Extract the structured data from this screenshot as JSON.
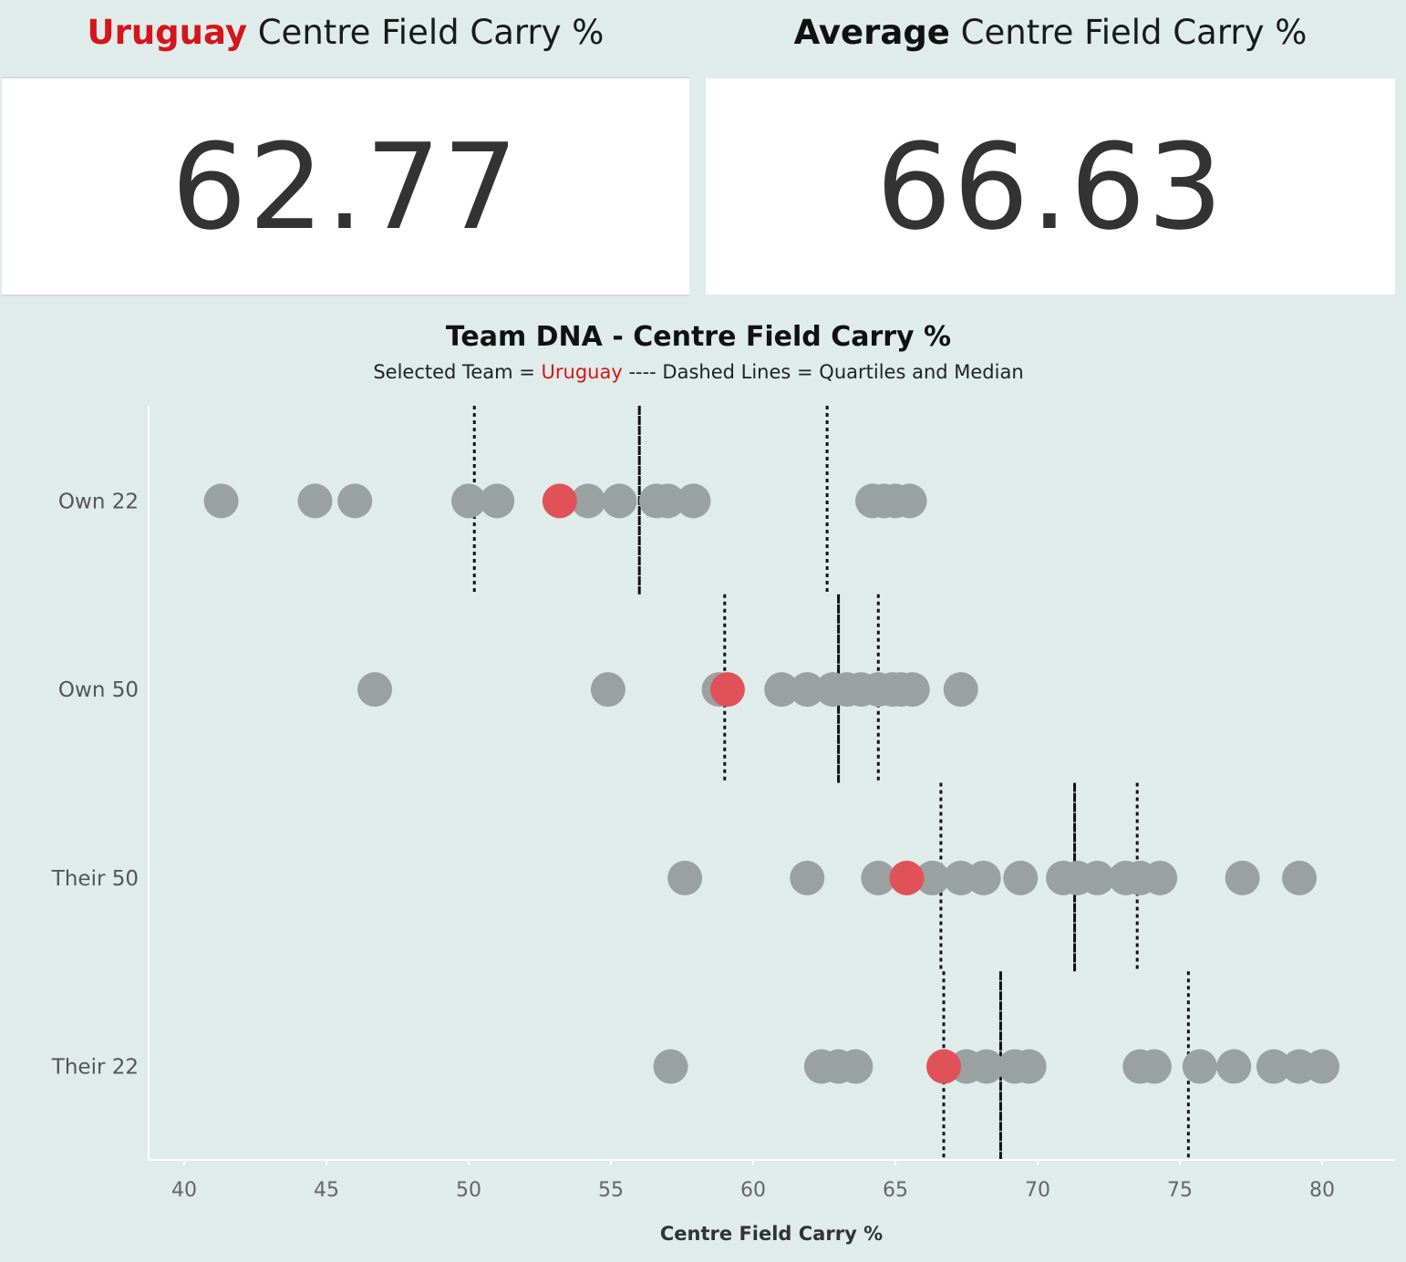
{
  "kpi": {
    "left": {
      "highlight": "Uruguay",
      "rest": " Centre Field Carry %",
      "value": "62.77"
    },
    "right": {
      "highlight": "Average",
      "rest": " Centre Field Carry %",
      "value": "66.63"
    }
  },
  "colors": {
    "background": "#dfece9",
    "selected_team": "#e05258",
    "other_teams": "#99a1a1",
    "accent_red_text": "#d4151c"
  },
  "chart_data": {
    "type": "scatter",
    "title": "Team DNA - Centre Field Carry %",
    "subtitle": {
      "before": "Selected Team = ",
      "team": "Uruguay",
      "after": " ---- Dashed Lines = Quartiles and Median"
    },
    "xlabel": "Centre Field Carry %",
    "xlim": [
      38.8,
      82.5
    ],
    "xticks": [
      40,
      45,
      50,
      55,
      60,
      65,
      70,
      75,
      80
    ],
    "categories": [
      "Own 22",
      "Own 50",
      "Their 50",
      "Their 22"
    ],
    "selected_team": "Uruguay",
    "series": [
      {
        "category": "Own 22",
        "others": [
          41.3,
          44.6,
          46.0,
          50.0,
          51.0,
          54.2,
          55.3,
          56.6,
          57.0,
          57.9,
          64.2,
          64.6,
          65.0,
          65.5
        ],
        "selected": 53.2,
        "quartiles": [
          50.2,
          56.0,
          62.6
        ]
      },
      {
        "category": "Own 50",
        "others": [
          46.7,
          54.9,
          58.8,
          61.0,
          61.9,
          62.8,
          63.3,
          63.8,
          64.4,
          64.9,
          65.2,
          65.6,
          67.3
        ],
        "selected": 59.1,
        "quartiles": [
          59.0,
          63.0,
          64.4
        ]
      },
      {
        "category": "Their 50",
        "others": [
          57.6,
          61.9,
          64.4,
          66.3,
          67.3,
          68.1,
          69.4,
          70.9,
          71.4,
          72.1,
          73.1,
          73.6,
          74.3,
          77.2,
          79.2
        ],
        "selected": 65.4,
        "quartiles": [
          66.6,
          71.3,
          73.5
        ]
      },
      {
        "category": "Their 22",
        "others": [
          57.1,
          62.4,
          63.0,
          63.6,
          67.5,
          68.2,
          69.2,
          69.7,
          73.6,
          74.1,
          75.7,
          76.9,
          78.3,
          79.2,
          80.0
        ],
        "selected": 66.7,
        "quartiles": [
          66.7,
          68.7,
          75.3
        ]
      }
    ]
  }
}
